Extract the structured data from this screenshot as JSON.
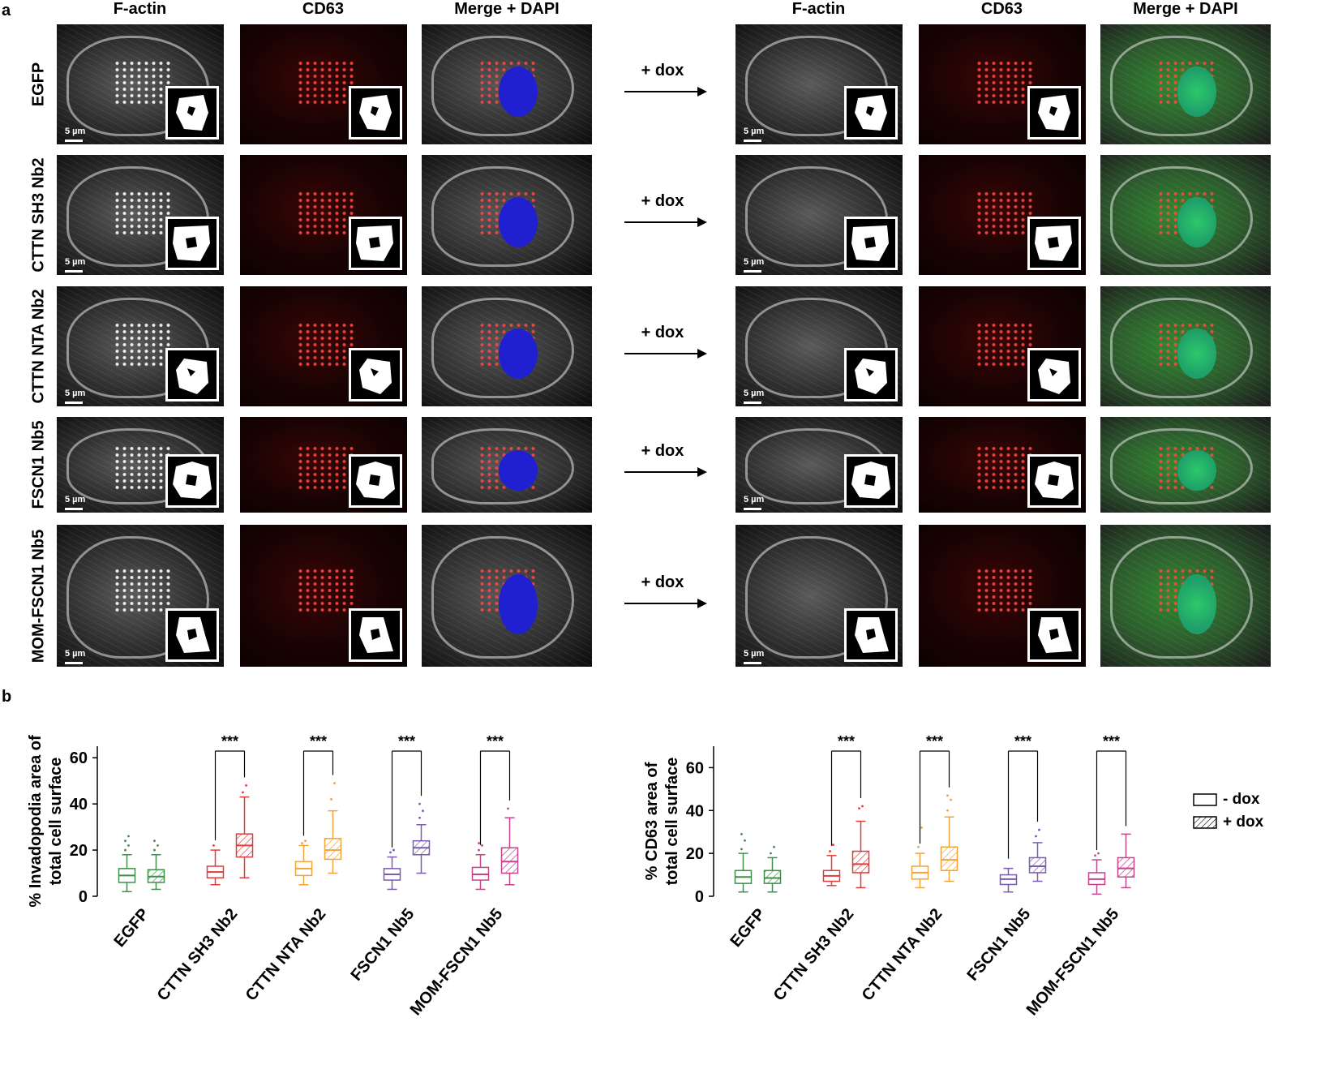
{
  "panel_a": {
    "letter": "a",
    "col_headers": [
      "F-actin",
      "CD63",
      "Merge + DAPI",
      "F-actin",
      "CD63",
      "Merge + DAPI"
    ],
    "rows": [
      {
        "label": "EGFP",
        "dox_label": "+ dox"
      },
      {
        "label": "CTTN SH3 Nb2",
        "dox_label": "+ dox"
      },
      {
        "label": "CTTN NTA Nb2",
        "dox_label": "+ dox"
      },
      {
        "label": "FSCN1 Nb5",
        "dox_label": "+ dox"
      },
      {
        "label": "MOM-FSCN1 Nb5",
        "dox_label": "+ dox"
      }
    ],
    "scale_bar": "5 µm"
  },
  "panel_b": {
    "letter": "b",
    "legend": {
      "minus_dox": "- dox",
      "plus_dox": "+ dox"
    },
    "significance": "***"
  },
  "chart_data": [
    {
      "type": "box",
      "ylabel_line1": "% Invadopodia  area of",
      "ylabel_line2": "total cell surface",
      "ylim": [
        0,
        65
      ],
      "yticks": [
        0,
        20,
        40,
        60
      ],
      "categories": [
        "EGFP",
        "CTTN SH3 Nb2",
        "CTTN NTA Nb2",
        "FSCN1 Nb5",
        "MOM-FSCN1 Nb5"
      ],
      "colors": [
        "#3f8f4a",
        "#e03c3c",
        "#f2a33a",
        "#7a5bb0",
        "#c2458e"
      ],
      "series": [
        {
          "name": "- dox",
          "boxes": [
            {
              "min": 2,
              "q1": 6,
              "median": 9,
              "q3": 12,
              "max": 18,
              "outliers": [
                20,
                22,
                24,
                26
              ]
            },
            {
              "min": 5,
              "q1": 8,
              "median": 10.5,
              "q3": 13,
              "max": 20,
              "outliers": [
                22
              ]
            },
            {
              "min": 5,
              "q1": 9,
              "median": 12,
              "q3": 15,
              "max": 22,
              "outliers": [
                23,
                24
              ]
            },
            {
              "min": 3,
              "q1": 7,
              "median": 9.5,
              "q3": 12,
              "max": 17,
              "outliers": [
                19,
                20
              ]
            },
            {
              "min": 3,
              "q1": 7,
              "median": 9.5,
              "q3": 12.5,
              "max": 18,
              "outliers": [
                20,
                22,
                23
              ]
            }
          ]
        },
        {
          "name": "+ dox",
          "boxes": [
            {
              "min": 3,
              "q1": 6,
              "median": 8.5,
              "q3": 11.5,
              "max": 18,
              "outliers": [
                20,
                22,
                24
              ]
            },
            {
              "min": 8,
              "q1": 17,
              "median": 22,
              "q3": 27,
              "max": 43,
              "outliers": [
                45,
                48
              ]
            },
            {
              "min": 10,
              "q1": 16,
              "median": 20,
              "q3": 25,
              "max": 37,
              "outliers": [
                42,
                49
              ]
            },
            {
              "min": 10,
              "q1": 18,
              "median": 21,
              "q3": 24,
              "max": 31,
              "outliers": [
                34,
                37,
                40
              ]
            },
            {
              "min": 5,
              "q1": 10,
              "median": 15,
              "q3": 21,
              "max": 34,
              "outliers": [
                38
              ]
            }
          ]
        }
      ]
    },
    {
      "type": "box",
      "ylabel_line1": "% CD63 area of",
      "ylabel_line2": "total cell surface",
      "ylim": [
        0,
        70
      ],
      "yticks": [
        0,
        20,
        40,
        60
      ],
      "categories": [
        "EGFP",
        "CTTN SH3 Nb2",
        "CTTN NTA Nb2",
        "FSCN1 Nb5",
        "MOM-FSCN1 Nb5"
      ],
      "colors": [
        "#3f8f4a",
        "#e03c3c",
        "#f2a33a",
        "#7a5bb0",
        "#c2458e"
      ],
      "series": [
        {
          "name": "- dox",
          "boxes": [
            {
              "min": 2,
              "q1": 6,
              "median": 9,
              "q3": 12,
              "max": 20,
              "outliers": [
                22,
                26,
                29
              ]
            },
            {
              "min": 5,
              "q1": 7,
              "median": 9.5,
              "q3": 12,
              "max": 19,
              "outliers": [
                21,
                24
              ]
            },
            {
              "min": 4,
              "q1": 8,
              "median": 11,
              "q3": 14,
              "max": 20,
              "outliers": [
                23,
                32
              ]
            },
            {
              "min": 2,
              "q1": 5.5,
              "median": 8,
              "q3": 10,
              "max": 13,
              "outliers": []
            },
            {
              "min": 1,
              "q1": 5.5,
              "median": 8,
              "q3": 11,
              "max": 17,
              "outliers": [
                19,
                20
              ]
            }
          ]
        },
        {
          "name": "+ dox",
          "boxes": [
            {
              "min": 2,
              "q1": 6,
              "median": 8.5,
              "q3": 12,
              "max": 18,
              "outliers": [
                20,
                23
              ]
            },
            {
              "min": 4,
              "q1": 11,
              "median": 15,
              "q3": 21,
              "max": 35,
              "outliers": [
                41,
                42
              ]
            },
            {
              "min": 7,
              "q1": 12,
              "median": 17,
              "q3": 23,
              "max": 37,
              "outliers": [
                40,
                45,
                47
              ]
            },
            {
              "min": 7,
              "q1": 11,
              "median": 14,
              "q3": 18,
              "max": 25,
              "outliers": [
                28,
                31
              ]
            },
            {
              "min": 4,
              "q1": 9,
              "median": 13,
              "q3": 18,
              "max": 29,
              "outliers": []
            }
          ]
        }
      ]
    }
  ]
}
